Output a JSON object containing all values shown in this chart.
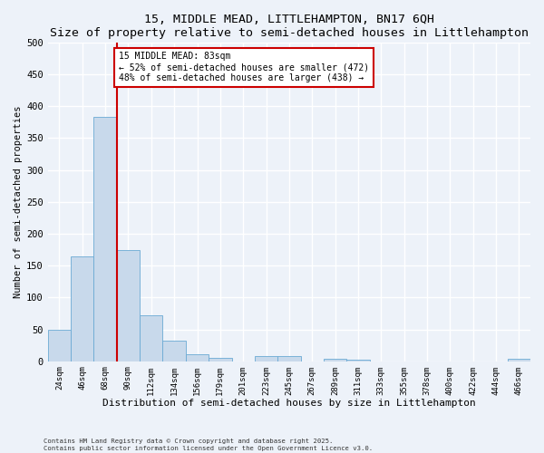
{
  "title": "15, MIDDLE MEAD, LITTLEHAMPTON, BN17 6QH",
  "subtitle": "Size of property relative to semi-detached houses in Littlehampton",
  "xlabel": "Distribution of semi-detached houses by size in Littlehampton",
  "ylabel": "Number of semi-detached properties",
  "categories": [
    "24sqm",
    "46sqm",
    "68sqm",
    "90sqm",
    "112sqm",
    "134sqm",
    "156sqm",
    "179sqm",
    "201sqm",
    "223sqm",
    "245sqm",
    "267sqm",
    "289sqm",
    "311sqm",
    "333sqm",
    "355sqm",
    "378sqm",
    "400sqm",
    "422sqm",
    "444sqm",
    "466sqm"
  ],
  "values": [
    50,
    165,
    383,
    175,
    72,
    33,
    11,
    6,
    0,
    8,
    8,
    0,
    4,
    3,
    0,
    0,
    0,
    0,
    0,
    0,
    4
  ],
  "bar_color": "#c8d9eb",
  "bar_edge_color": "#6aaad4",
  "property_line_x": 2.5,
  "annotation_label": "15 MIDDLE MEAD: 83sqm",
  "annotation_line1": "← 52% of semi-detached houses are smaller (472)",
  "annotation_line2": "48% of semi-detached houses are larger (438) →",
  "ylim": [
    0,
    500
  ],
  "yticks": [
    0,
    50,
    100,
    150,
    200,
    250,
    300,
    350,
    400,
    450,
    500
  ],
  "footer1": "Contains HM Land Registry data © Crown copyright and database right 2025.",
  "footer2": "Contains public sector information licensed under the Open Government Licence v3.0.",
  "bg_color": "#edf2f9",
  "plot_bg_color": "#edf2f9",
  "grid_color": "#ffffff",
  "annotation_box_color": "#ffffff",
  "annotation_box_edge": "#cc0000",
  "vline_color": "#cc0000"
}
